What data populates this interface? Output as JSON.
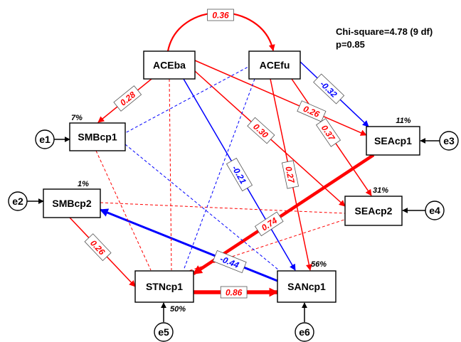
{
  "stats": {
    "chi_square": "Chi-square=4.78 (9 df)",
    "p_value": "p=0.85"
  },
  "colors": {
    "positive": "#ff0000",
    "negative": "#0000ff",
    "node_border": "#000000",
    "node_fill": "#ffffff"
  },
  "nodes": [
    {
      "id": "ACEba",
      "label": "ACEba"
    },
    {
      "id": "ACEfu",
      "label": "ACEfu"
    },
    {
      "id": "SMBcp1",
      "label": "SMBcp1",
      "r2": "7%"
    },
    {
      "id": "SMBcp2",
      "label": "SMBcp2",
      "r2": "1%"
    },
    {
      "id": "SEAcp1",
      "label": "SEAcp1",
      "r2": "11%"
    },
    {
      "id": "SEAcp2",
      "label": "SEAcp2",
      "r2": "31%"
    },
    {
      "id": "STNcp1",
      "label": "STNcp1",
      "r2": "50%"
    },
    {
      "id": "SANcp1",
      "label": "SANcp1",
      "r2": "56%"
    }
  ],
  "errors": [
    {
      "id": "e1",
      "label": "e1",
      "target": "SMBcp1"
    },
    {
      "id": "e2",
      "label": "e2",
      "target": "SMBcp2"
    },
    {
      "id": "e3",
      "label": "e3",
      "target": "SEAcp1"
    },
    {
      "id": "e4",
      "label": "e4",
      "target": "SEAcp2"
    },
    {
      "id": "e5",
      "label": "e5",
      "target": "STNcp1"
    },
    {
      "id": "e6",
      "label": "e6",
      "target": "SANcp1"
    }
  ],
  "paths": [
    {
      "from": "ACEba",
      "to": "ACEfu",
      "coef": "0.36",
      "sign": "pos",
      "style": "covariance"
    },
    {
      "from": "ACEba",
      "to": "SMBcp1",
      "coef": "0.28",
      "sign": "pos",
      "style": "solid"
    },
    {
      "from": "ACEba",
      "to": "SEAcp1",
      "coef": "0.26",
      "sign": "pos",
      "style": "solid"
    },
    {
      "from": "ACEba",
      "to": "SEAcp2",
      "coef": "0.30",
      "sign": "pos",
      "style": "solid"
    },
    {
      "from": "ACEba",
      "to": "SANcp1",
      "coef": "-0.21",
      "sign": "neg",
      "style": "solid"
    },
    {
      "from": "ACEfu",
      "to": "SEAcp1",
      "coef": "-0.32",
      "sign": "neg",
      "style": "solid"
    },
    {
      "from": "ACEfu",
      "to": "SEAcp2",
      "coef": "0.37",
      "sign": "pos",
      "style": "solid"
    },
    {
      "from": "ACEfu",
      "to": "SANcp1",
      "coef": "0.27",
      "sign": "pos",
      "style": "solid"
    },
    {
      "from": "SMBcp2",
      "to": "STNcp1",
      "coef": "0.26",
      "sign": "pos",
      "style": "solid"
    },
    {
      "from": "SANcp1",
      "to": "SMBcp2",
      "coef": "-0.44",
      "sign": "neg",
      "style": "bold"
    },
    {
      "from": "SEAcp1",
      "to": "STNcp1",
      "coef": "0.74",
      "sign": "pos",
      "style": "bold"
    },
    {
      "from": "STNcp1",
      "to": "SANcp1",
      "coef": "0.86",
      "sign": "pos",
      "style": "bold"
    },
    {
      "from": "ACEba",
      "to": "STNcp1",
      "coef": "",
      "sign": "pos",
      "style": "dashed"
    },
    {
      "from": "SMBcp1",
      "to": "STNcp1",
      "coef": "",
      "sign": "pos",
      "style": "dashed"
    },
    {
      "from": "SMBcp2",
      "to": "SEAcp2",
      "coef": "",
      "sign": "pos",
      "style": "dashed"
    },
    {
      "from": "SEAcp2",
      "to": "STNcp1",
      "coef": "",
      "sign": "pos",
      "style": "dashed"
    },
    {
      "from": "ACEfu",
      "to": "SMBcp1",
      "coef": "",
      "sign": "neg",
      "style": "dashed"
    },
    {
      "from": "ACEfu",
      "to": "STNcp1",
      "coef": "",
      "sign": "neg",
      "style": "dashed"
    },
    {
      "from": "SMBcp1",
      "to": "SANcp1",
      "coef": "",
      "sign": "neg",
      "style": "dashed"
    }
  ]
}
